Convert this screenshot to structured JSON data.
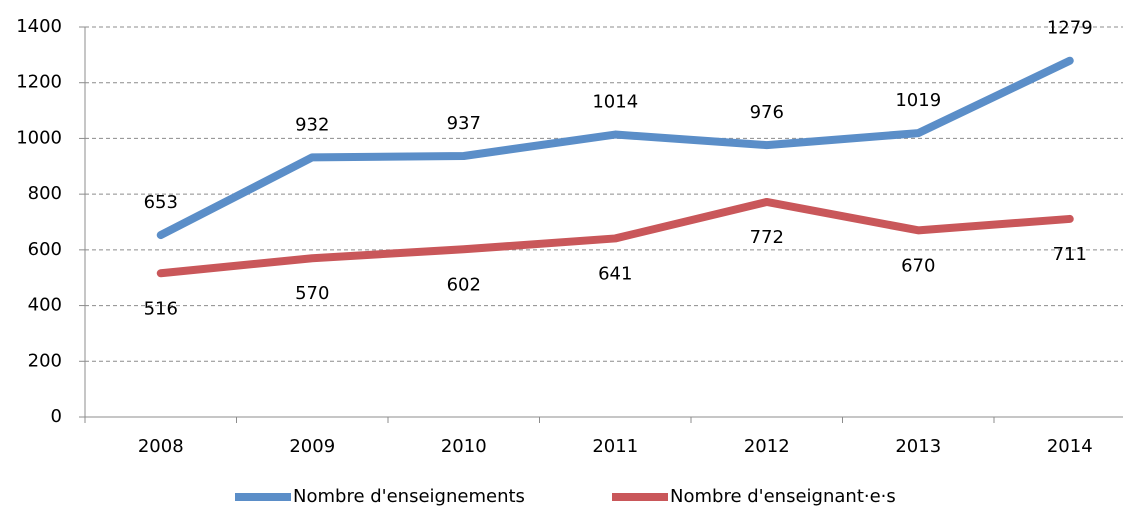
{
  "chart_data": {
    "type": "line",
    "categories": [
      "2008",
      "2009",
      "2010",
      "2011",
      "2012",
      "2013",
      "2014"
    ],
    "series": [
      {
        "name": "Nombre d'enseignements",
        "color": "#5b8ec8",
        "values": [
          653,
          932,
          937,
          1014,
          976,
          1019,
          1279
        ]
      },
      {
        "name": "Nombre d'enseignant·e·s",
        "color": "#c9575a",
        "values": [
          516,
          570,
          602,
          641,
          772,
          670,
          711
        ]
      }
    ],
    "ylim": [
      0,
      1400
    ],
    "yticks": [
      0,
      200,
      400,
      600,
      800,
      1000,
      1200,
      1400
    ],
    "grid": true,
    "legend": "bottom"
  }
}
